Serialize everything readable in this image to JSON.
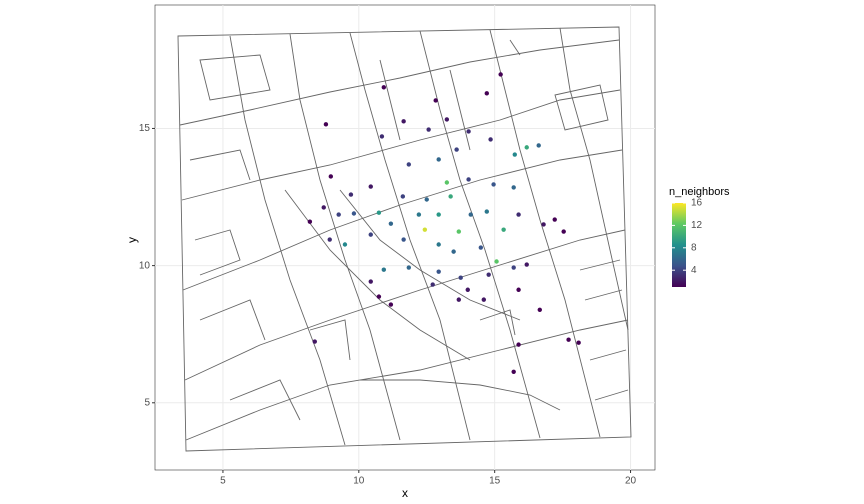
{
  "chart_data": {
    "type": "scatter",
    "x_label": "x",
    "y_label": "y",
    "legend_title": "n_neighbors",
    "xlim": [
      2.5,
      20.9
    ],
    "ylim": [
      2.55,
      19.5
    ],
    "xticks": [
      5,
      10,
      15,
      20
    ],
    "yticks": [
      5,
      10,
      15
    ],
    "grid": true,
    "colorlim": [
      1,
      16
    ],
    "colorticks": [
      4,
      8,
      12,
      16
    ],
    "colors": [
      "#440154",
      "#3b528b",
      "#21908d",
      "#5dc963",
      "#fde725"
    ],
    "x": [
      10.92,
      15.22,
      14.71,
      12.83,
      8.79,
      10.85,
      11.65,
      12.57,
      13.24,
      14.04,
      14.85,
      16.18,
      16.62,
      15.74,
      13.6,
      12.94,
      11.84,
      8.97,
      10.44,
      13.24,
      14.04,
      14.96,
      15.7,
      13.38,
      12.5,
      11.62,
      9.71,
      8.71,
      9.26,
      9.82,
      10.74,
      11.18,
      12.21,
      12.43,
      12.94,
      13.68,
      14.12,
      14.71,
      15.33,
      15.88,
      16.8,
      17.21,
      17.54,
      8.2,
      8.93,
      9.49,
      10.44,
      11.65,
      12.94,
      13.49,
      14.49,
      15.07,
      15.7,
      16.18,
      10.92,
      11.84,
      12.94,
      13.75,
      14.78,
      10.44,
      12.72,
      14.01,
      15.88,
      10.74,
      13.68,
      14.6,
      11.18,
      15.88,
      8.38,
      17.72,
      18.09,
      15.7,
      16.66
    ],
    "y": [
      16.5,
      16.97,
      16.28,
      16.02,
      15.15,
      14.71,
      15.26,
      14.96,
      15.33,
      14.89,
      14.6,
      14.31,
      14.38,
      14.05,
      14.23,
      13.87,
      13.69,
      13.25,
      12.88,
      13.03,
      13.14,
      12.96,
      12.85,
      12.52,
      12.41,
      12.52,
      12.59,
      12.12,
      11.86,
      11.9,
      11.93,
      11.53,
      11.86,
      11.31,
      11.86,
      11.24,
      11.86,
      11.97,
      11.31,
      11.86,
      11.5,
      11.68,
      11.24,
      11.6,
      10.95,
      10.77,
      11.13,
      10.95,
      10.77,
      10.51,
      10.66,
      10.15,
      9.93,
      10.04,
      9.85,
      9.93,
      9.78,
      9.56,
      9.67,
      9.42,
      9.31,
      9.12,
      9.12,
      8.87,
      8.76,
      8.76,
      8.58,
      7.12,
      7.23,
      7.3,
      7.19,
      6.13,
      8.39
    ],
    "color_values": [
      1,
      1,
      1,
      1,
      1,
      3,
      2,
      3,
      2,
      3,
      3,
      10,
      6,
      8,
      4,
      6,
      4,
      1,
      2,
      12,
      4,
      5,
      6,
      10,
      6,
      4,
      3,
      2,
      4,
      5,
      9,
      6,
      7,
      15,
      9,
      12,
      6,
      7,
      10,
      3,
      2,
      1,
      1,
      1,
      3,
      8,
      4,
      5,
      7,
      6,
      5,
      12,
      4,
      2,
      7,
      6,
      5,
      4,
      3,
      2,
      3,
      2,
      1,
      1,
      2,
      2,
      1,
      1,
      2,
      1,
      1,
      1,
      1
    ]
  }
}
